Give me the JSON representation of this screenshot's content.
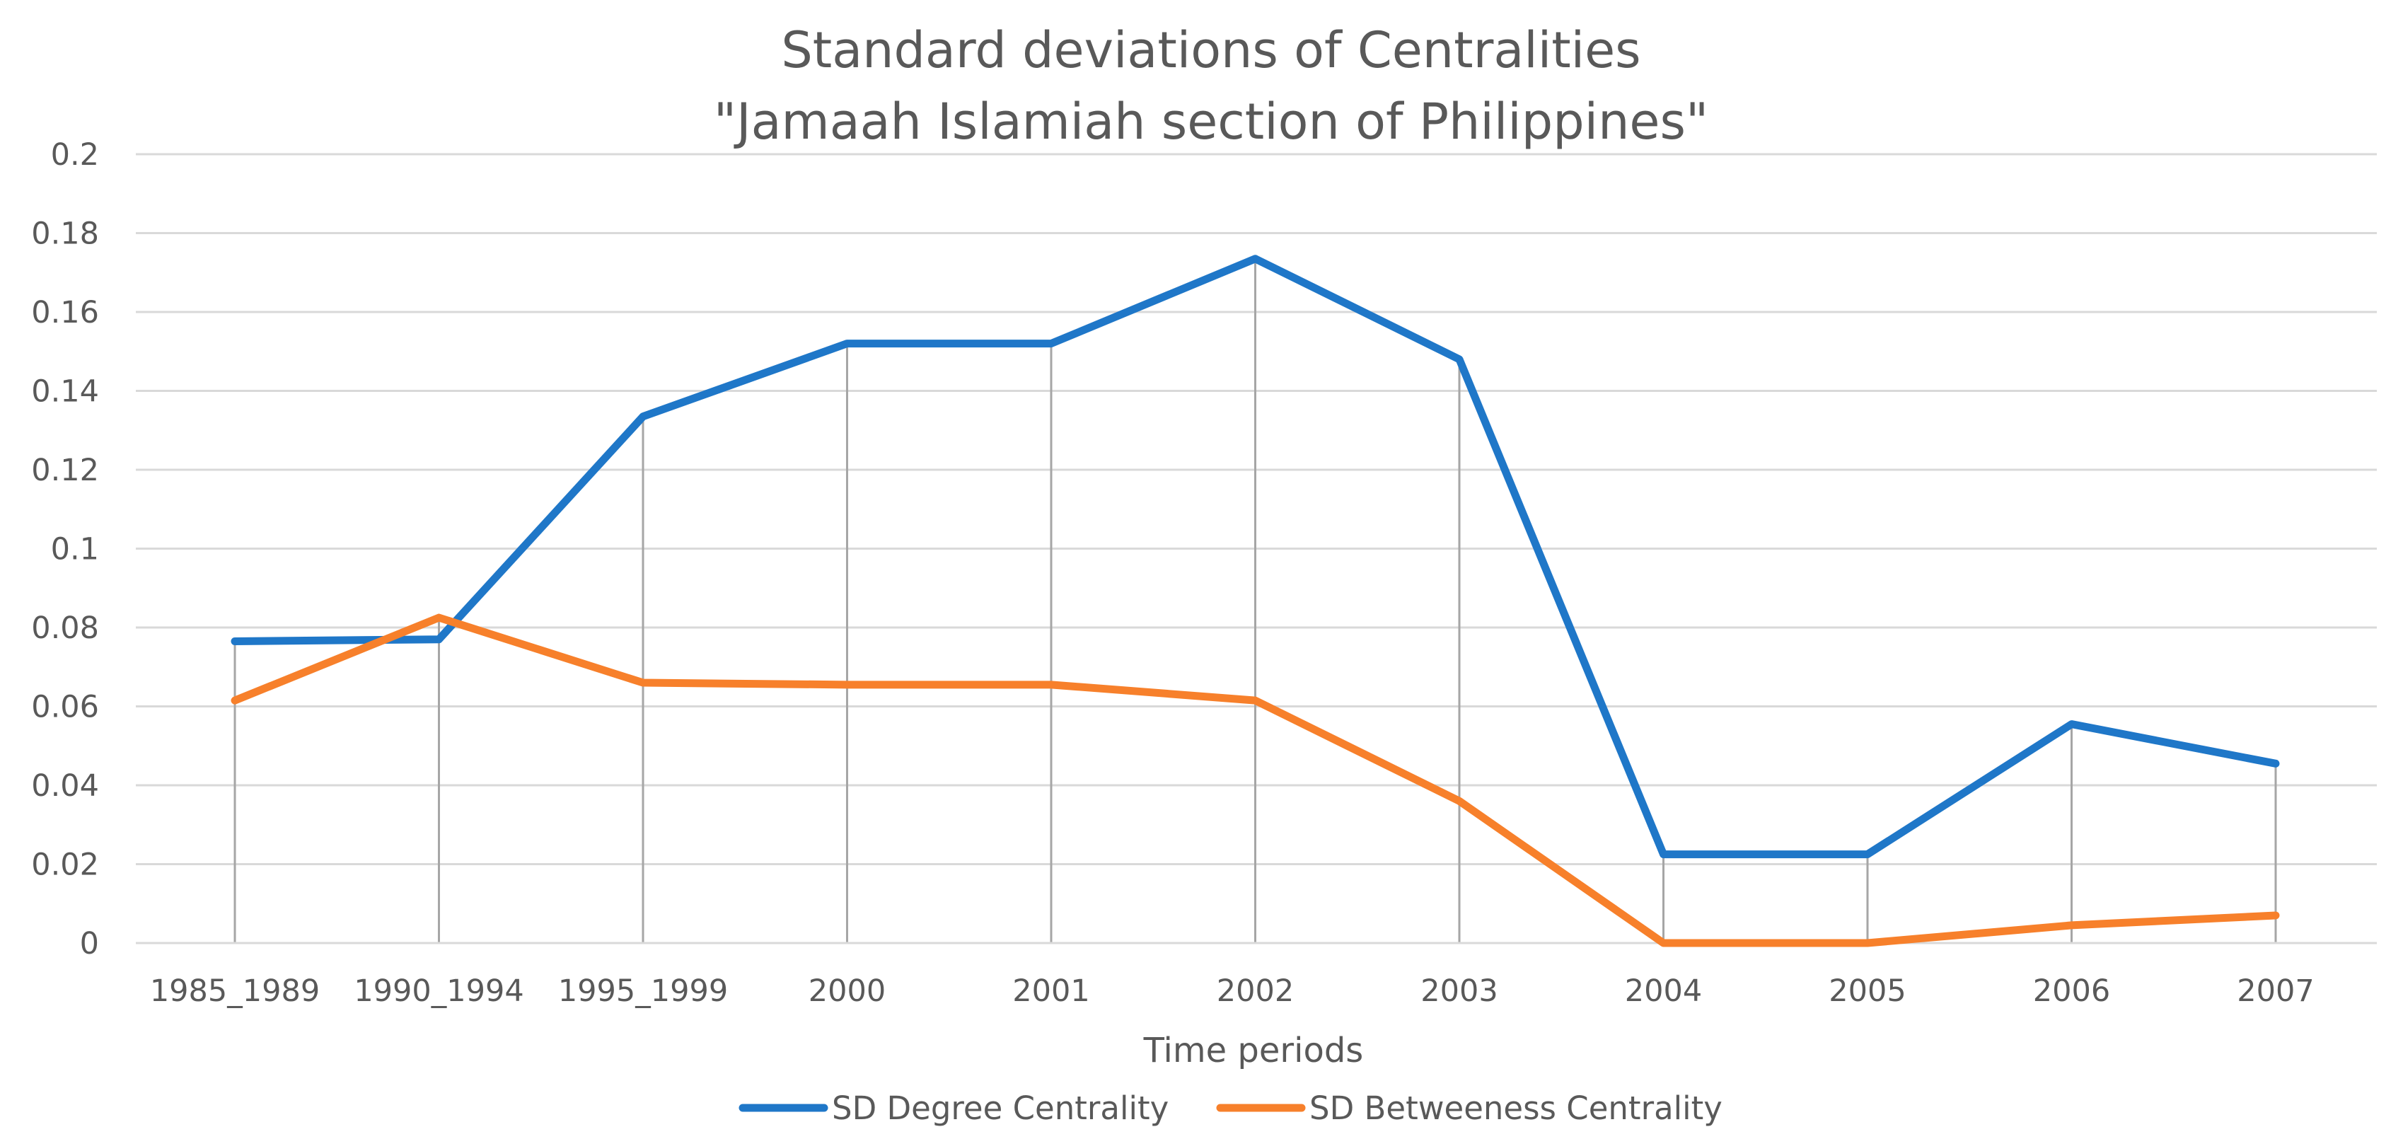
{
  "chart_data": {
    "type": "line",
    "title": "Standard deviations of Centralities",
    "subtitle": "\"Jamaah Islamiah section of Philippines\"",
    "xlabel": "Time periods",
    "ylabel": "",
    "categories": [
      "1985_1989",
      "1990_1994",
      "1995_1999",
      "2000",
      "2001",
      "2002",
      "2003",
      "2004",
      "2005",
      "2006",
      "2007"
    ],
    "series": [
      {
        "name": "SD Degree Centrality",
        "color": "#1F77C8",
        "values": [
          0.0765,
          0.077,
          0.1335,
          0.152,
          0.152,
          0.1735,
          0.148,
          0.0225,
          0.0225,
          0.0555,
          0.0455
        ]
      },
      {
        "name": "SD Betweeness Centrality",
        "color": "#F7802B",
        "values": [
          0.0615,
          0.0825,
          0.066,
          0.0655,
          0.0655,
          0.0615,
          0.036,
          0.0,
          0.0,
          0.0045,
          0.007
        ]
      }
    ],
    "ylim": [
      0,
      0.2
    ],
    "yticks": [
      "0",
      "0.02",
      "0.04",
      "0.06",
      "0.08",
      "0.1",
      "0.12",
      "0.14",
      "0.16",
      "0.18",
      "0.2"
    ],
    "ytick_values": [
      0,
      0.02,
      0.04,
      0.06,
      0.08,
      0.1,
      0.12,
      0.14,
      0.16,
      0.18,
      0.2
    ],
    "grid": true,
    "drop_lines": true,
    "legend_position": "bottom"
  }
}
